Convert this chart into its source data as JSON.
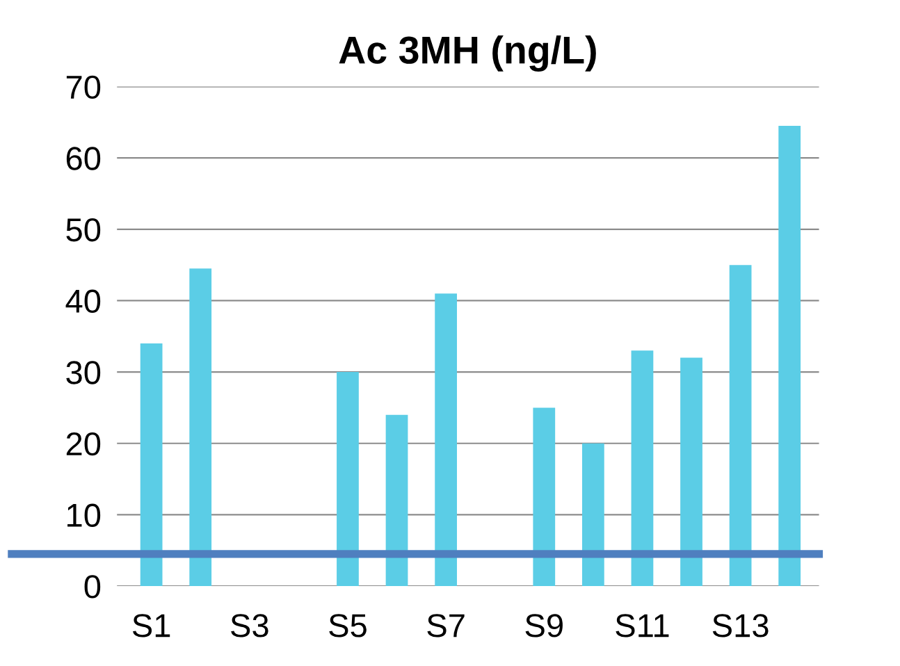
{
  "chart_data": {
    "type": "bar",
    "title": "Ac 3MH (ng/L)",
    "categories": [
      "S1",
      null,
      "S3",
      null,
      "S5",
      null,
      "S7",
      null,
      "S9",
      null,
      "S11",
      null,
      "S13",
      null
    ],
    "values": [
      34,
      44.5,
      null,
      null,
      30,
      24,
      41,
      null,
      25,
      20,
      33,
      32,
      45,
      64.5
    ],
    "color": "#5bcde6",
    "ylim": [
      0,
      70
    ],
    "yticks": [
      0,
      10,
      20,
      30,
      40,
      50,
      60,
      70
    ],
    "grid": "y",
    "ref_lines": [
      {
        "axis": "y",
        "value": 4.5,
        "color": "#4f7fbf"
      }
    ]
  }
}
